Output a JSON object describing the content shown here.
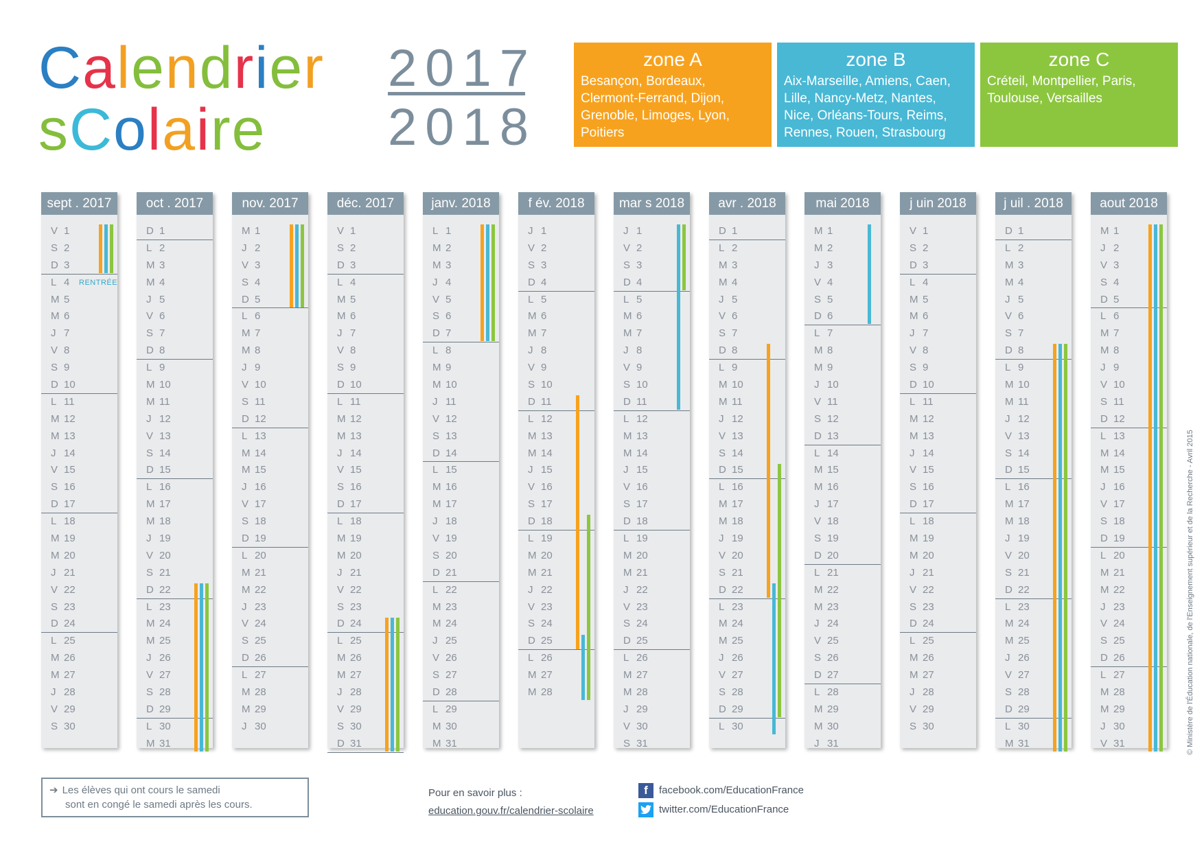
{
  "header": {
    "title_line1": [
      {
        "ch": "C",
        "color": "#2b7fc3"
      },
      {
        "ch": "a",
        "color": "#e5334a"
      },
      {
        "ch": "l",
        "color": "#f2a022"
      },
      {
        "ch": "e",
        "color": "#84be3c"
      },
      {
        "ch": "n",
        "color": "#f2a022"
      },
      {
        "ch": "d",
        "color": "#84be3c"
      },
      {
        "ch": "r",
        "color": "#e5334a"
      },
      {
        "ch": "i",
        "color": "#2b7fc3"
      },
      {
        "ch": "e",
        "color": "#84be3c"
      },
      {
        "ch": "r",
        "color": "#f2a022"
      }
    ],
    "title_line2": [
      {
        "ch": "s",
        "color": "#84be3c"
      },
      {
        "ch": "C",
        "color": "#3cb9d8"
      },
      {
        "ch": "o",
        "color": "#2b7fc3"
      },
      {
        "ch": "l",
        "color": "#e5334a"
      },
      {
        "ch": "a",
        "color": "#f2a022"
      },
      {
        "ch": "i",
        "color": "#e5334a"
      },
      {
        "ch": "r",
        "color": "#84be3c"
      },
      {
        "ch": "e",
        "color": "#84be3c"
      }
    ],
    "year_start": "2017",
    "year_end": "2018"
  },
  "zones": [
    {
      "name": "zone A",
      "color": "#f7a21e",
      "cities": [
        "Besançon, Bordeaux,",
        "Clermont-Ferrand, Dijon,",
        "Grenoble, Limoges, Lyon,",
        "Poitiers"
      ]
    },
    {
      "name": "zone B",
      "color": "#48b8d5",
      "cities": [
        "Aix-Marseille, Amiens, Caen,",
        "Lille, Nancy-Metz, Nantes,",
        "Nice, Orléans-Tours, Reims,",
        "Rennes, Rouen, Strasbourg"
      ]
    },
    {
      "name": "zone C",
      "color": "#8cc63f",
      "cities": [
        "Créteil, Montpellier, Paris,",
        "Toulouse, Versailles"
      ]
    }
  ],
  "months": [
    {
      "label": "sept . 2017",
      "start": "V",
      "days": 30,
      "notes": {
        "4": "RENTRÉE"
      },
      "bars": [
        {
          "zone": 0,
          "from": 1,
          "to": 3
        },
        {
          "zone": 1,
          "from": 1,
          "to": 3
        },
        {
          "zone": 2,
          "from": 1,
          "to": 3
        }
      ]
    },
    {
      "label": "oct . 2017",
      "start": "D",
      "days": 31,
      "bars": [
        {
          "zone": 0,
          "from": 22,
          "to": 31
        },
        {
          "zone": 1,
          "from": 22,
          "to": 31
        },
        {
          "zone": 2,
          "from": 22,
          "to": 31
        }
      ]
    },
    {
      "label": "nov. 2017",
      "start": "M",
      "days": 30,
      "bars": [
        {
          "zone": 0,
          "from": 1,
          "to": 5
        },
        {
          "zone": 1,
          "from": 1,
          "to": 5
        },
        {
          "zone": 2,
          "from": 1,
          "to": 5
        }
      ]
    },
    {
      "label": "déc. 2017",
      "start": "V",
      "days": 31,
      "bars": [
        {
          "zone": 0,
          "from": 24,
          "to": 31
        },
        {
          "zone": 1,
          "from": 24,
          "to": 31
        },
        {
          "zone": 2,
          "from": 24,
          "to": 31
        }
      ]
    },
    {
      "label": "janv. 2018",
      "start": "L",
      "days": 31,
      "bars": [
        {
          "zone": 0,
          "from": 1,
          "to": 7
        },
        {
          "zone": 1,
          "from": 1,
          "to": 7
        },
        {
          "zone": 2,
          "from": 1,
          "to": 7
        }
      ]
    },
    {
      "label": "f év. 2018",
      "start": "J",
      "days": 28,
      "bars": [
        {
          "zone": 0,
          "from": 11,
          "to": 25
        },
        {
          "zone": 1,
          "from": 25,
          "to": 28
        },
        {
          "zone": 2,
          "from": 18,
          "to": 28
        }
      ]
    },
    {
      "label": "mar s 2018",
      "start": "J",
      "days": 31,
      "bars": [
        {
          "zone": 1,
          "from": 1,
          "to": 11
        },
        {
          "zone": 2,
          "from": 1,
          "to": 4
        }
      ]
    },
    {
      "label": "avr . 2018",
      "start": "D",
      "days": 30,
      "bars": [
        {
          "zone": 0,
          "from": 8,
          "to": 22
        },
        {
          "zone": 1,
          "from": 22,
          "to": 30
        },
        {
          "zone": 2,
          "from": 15,
          "to": 29
        }
      ]
    },
    {
      "label": "mai 2018",
      "start": "M",
      "days": 31,
      "bars": [
        {
          "zone": 1,
          "from": 1,
          "to": 6
        }
      ]
    },
    {
      "label": "j uin 2018",
      "start": "V",
      "days": 30,
      "bars": []
    },
    {
      "label": "j uil . 2018",
      "start": "D",
      "days": 31,
      "bars": [
        {
          "zone": 0,
          "from": 8,
          "to": 31
        },
        {
          "zone": 1,
          "from": 8,
          "to": 31
        },
        {
          "zone": 2,
          "from": 8,
          "to": 31
        }
      ]
    },
    {
      "label": "aout 2018",
      "start": "M",
      "days": 31,
      "bars": [
        {
          "zone": 0,
          "from": 1,
          "to": 31
        },
        {
          "zone": 1,
          "from": 1,
          "to": 31
        },
        {
          "zone": 2,
          "from": 1,
          "to": 31
        }
      ]
    }
  ],
  "weekday_letters": [
    "L",
    "M",
    "M",
    "J",
    "V",
    "S",
    "D"
  ],
  "footer": {
    "note_line1": "Les élèves qui ont cours le samedi",
    "note_line2": "sont en congé le samedi après les cours.",
    "more_label": "Pour en savoir plus :",
    "more_link": "education.gouv.fr/calendrier-scolaire",
    "facebook": "facebook.com/EducationFrance",
    "twitter": "twitter.com/EducationFrance",
    "facebook_color": "#3b5998",
    "twitter_color": "#1da1f2"
  },
  "copyright": "© Ministère de l'Éducation nationale, de l'Enseignement supérieur et de la Recherche - Avril 2015"
}
